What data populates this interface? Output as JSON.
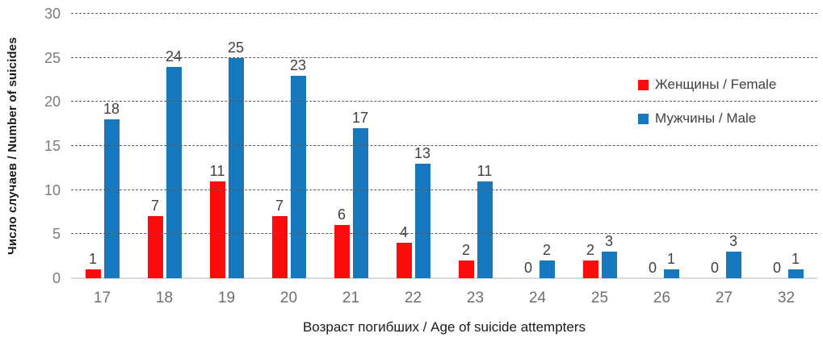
{
  "chart_data": {
    "type": "bar",
    "categories": [
      "17",
      "18",
      "19",
      "20",
      "21",
      "22",
      "23",
      "24",
      "25",
      "26",
      "27",
      "32"
    ],
    "series": [
      {
        "name": "Женщины / Female",
        "color": "#fc0d0d",
        "values": [
          1,
          7,
          11,
          7,
          6,
          4,
          2,
          0,
          2,
          0,
          0,
          0
        ]
      },
      {
        "name": "Мужчины / Male",
        "color": "#1878be",
        "values": [
          18,
          24,
          25,
          23,
          17,
          13,
          11,
          2,
          3,
          1,
          3,
          1
        ]
      }
    ],
    "title": "",
    "xlabel": "Возраст погибших / Age of suicide attempters",
    "ylabel": "Число случаев / Number of suicides",
    "ylim": [
      0,
      30
    ],
    "yticks": [
      0,
      5,
      10,
      15,
      20,
      25,
      30
    ],
    "grid": "horizontal dashed",
    "legend_position": "inside top-right",
    "data_labels": true
  },
  "colors": {
    "female_bar": "#fc0d0d",
    "male_bar": "#1878be",
    "gridline": "#595959",
    "axis_line": "#d9d9d9",
    "tick_label": "#7a7a7a",
    "data_label": "#404040",
    "legend_text": "#404040",
    "background": "#ffffff"
  }
}
